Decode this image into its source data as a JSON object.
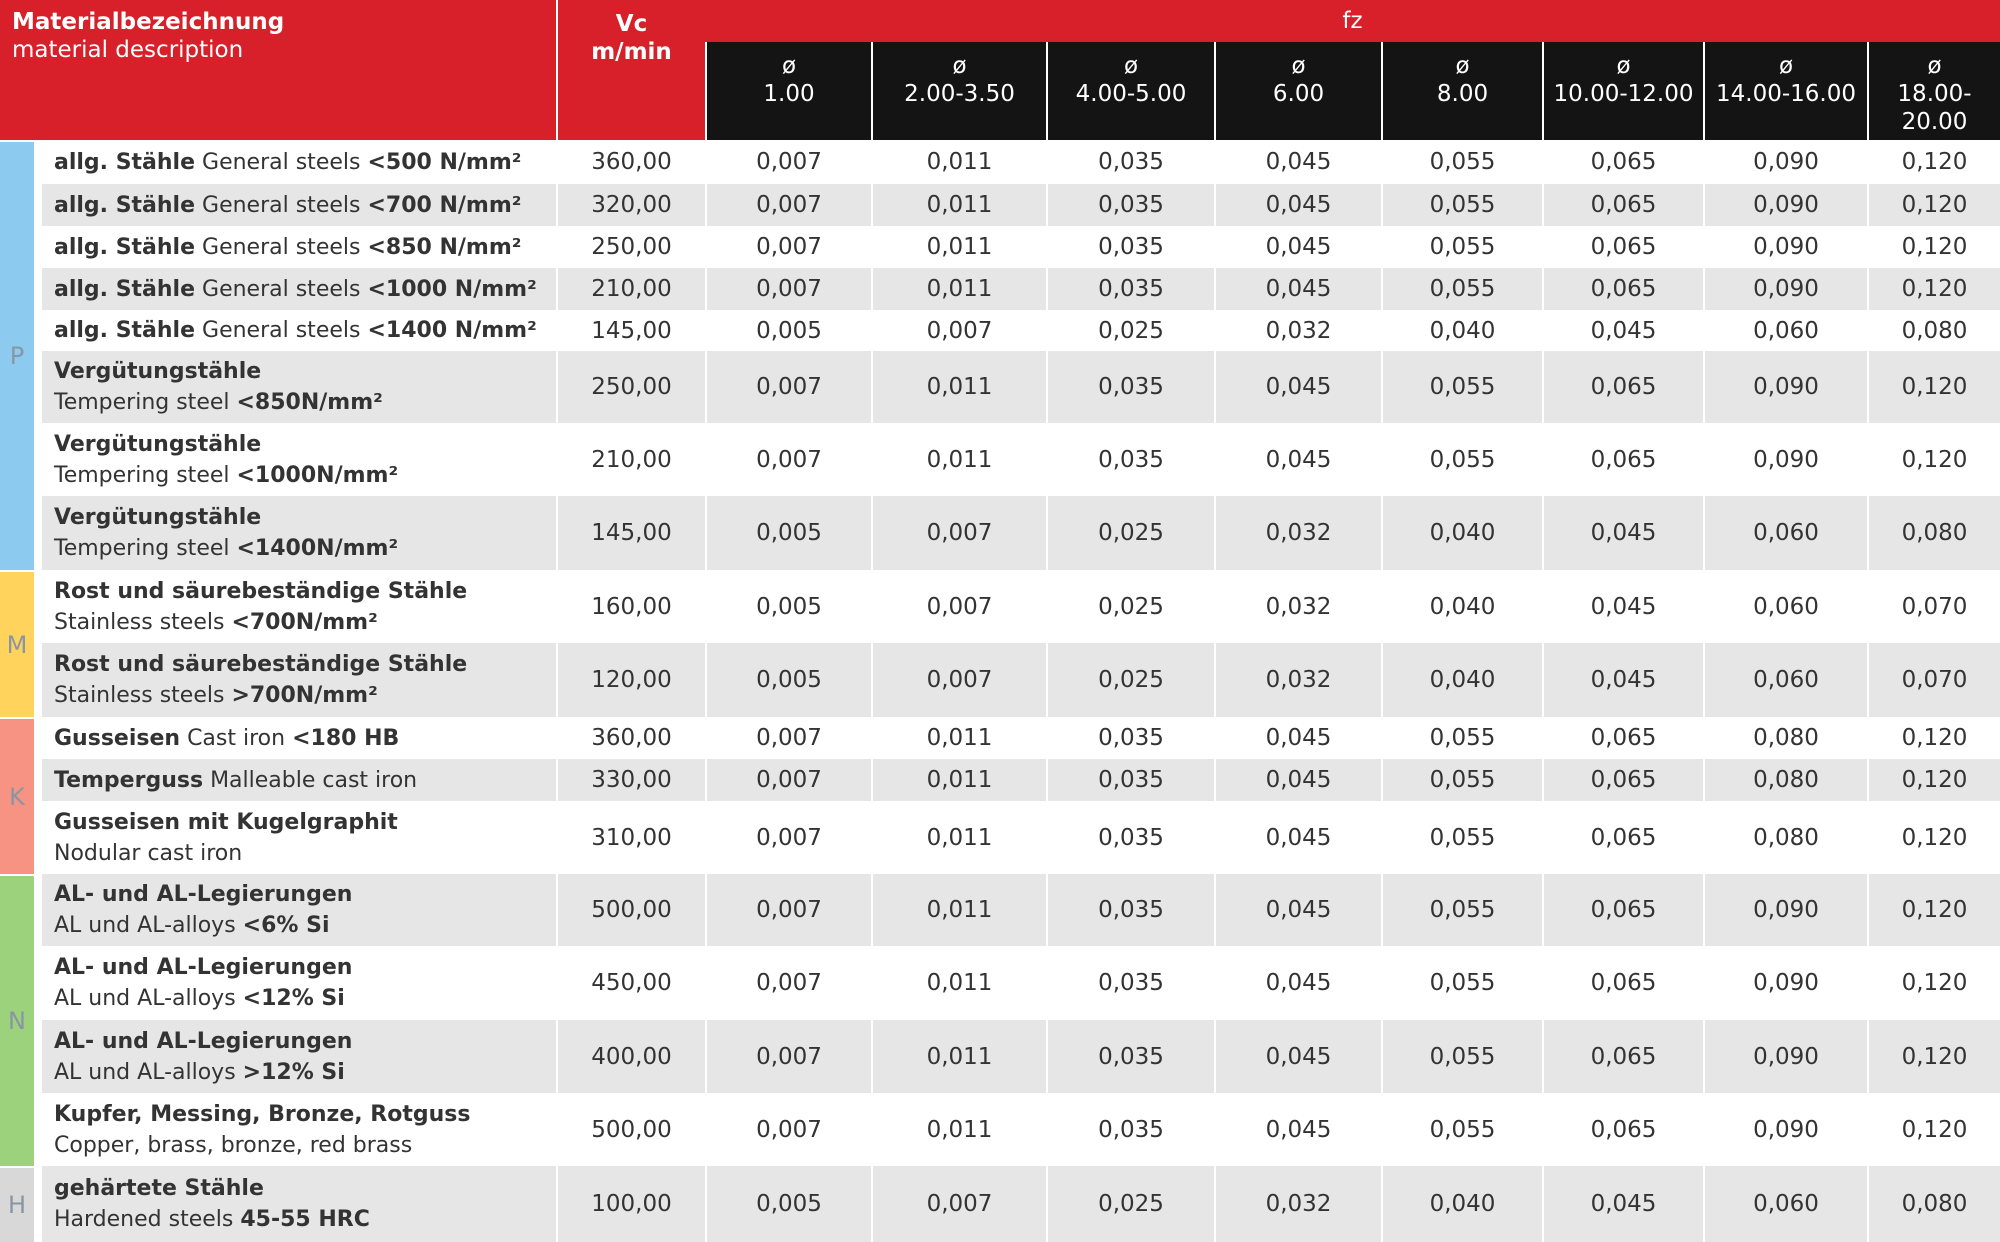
{
  "header": {
    "material_de": "Materialbezeichnung",
    "material_en": "material description",
    "vc": "Vc",
    "vc_unit": "m/min",
    "fz": "fz",
    "diameter_symbol": "ø",
    "diameters": [
      "1.00",
      "2.00-3.50",
      "4.00-5.00",
      "6.00",
      "8.00",
      "10.00-12.00",
      "14.00-16.00",
      "18.00-20.00"
    ]
  },
  "groups": [
    {
      "label": "P",
      "rows": [
        {
          "de": "allg. Stähle",
          "en": "General steels",
          "spec": "<500 N/mm²",
          "vc": "360,00",
          "fz": [
            "0,007",
            "0,011",
            "0,035",
            "0,045",
            "0,055",
            "0,065",
            "0,090",
            "0,120"
          ]
        },
        {
          "de": "allg. Stähle",
          "en": "General steels",
          "spec": "<700 N/mm²",
          "vc": "320,00",
          "fz": [
            "0,007",
            "0,011",
            "0,035",
            "0,045",
            "0,055",
            "0,065",
            "0,090",
            "0,120"
          ]
        },
        {
          "de": "allg. Stähle",
          "en": "General steels",
          "spec": "<850 N/mm²",
          "vc": "250,00",
          "fz": [
            "0,007",
            "0,011",
            "0,035",
            "0,045",
            "0,055",
            "0,065",
            "0,090",
            "0,120"
          ]
        },
        {
          "de": "allg. Stähle",
          "en": "General steels",
          "spec": "<1000 N/mm²",
          "vc": "210,00",
          "fz": [
            "0,007",
            "0,011",
            "0,035",
            "0,045",
            "0,055",
            "0,065",
            "0,090",
            "0,120"
          ]
        },
        {
          "de": "allg. Stähle",
          "en": "General steels",
          "spec": "<1400 N/mm²",
          "vc": "145,00",
          "fz": [
            "0,005",
            "0,007",
            "0,025",
            "0,032",
            "0,040",
            "0,045",
            "0,060",
            "0,080"
          ]
        },
        {
          "de": "Vergütungstähle",
          "en": "Tempering steel",
          "spec": "<850N/mm²",
          "vc": "250,00",
          "fz": [
            "0,007",
            "0,011",
            "0,035",
            "0,045",
            "0,055",
            "0,065",
            "0,090",
            "0,120"
          ]
        },
        {
          "de": "Vergütungstähle",
          "en": "Tempering steel",
          "spec": "<1000N/mm²",
          "vc": "210,00",
          "fz": [
            "0,007",
            "0,011",
            "0,035",
            "0,045",
            "0,055",
            "0,065",
            "0,090",
            "0,120"
          ]
        },
        {
          "de": "Vergütungstähle",
          "en": "Tempering steel",
          "spec": "<1400N/mm²",
          "vc": "145,00",
          "fz": [
            "0,005",
            "0,007",
            "0,025",
            "0,032",
            "0,040",
            "0,045",
            "0,060",
            "0,080"
          ]
        }
      ]
    },
    {
      "label": "M",
      "rows": [
        {
          "de": "Rost und säurebeständige Stähle",
          "en": "Stainless steels",
          "spec": "<700N/mm²",
          "vc": "160,00",
          "fz": [
            "0,005",
            "0,007",
            "0,025",
            "0,032",
            "0,040",
            "0,045",
            "0,060",
            "0,070"
          ]
        },
        {
          "de": "Rost und säurebeständige Stähle",
          "en": "Stainless steels",
          "spec": ">700N/mm²",
          "vc": "120,00",
          "fz": [
            "0,005",
            "0,007",
            "0,025",
            "0,032",
            "0,040",
            "0,045",
            "0,060",
            "0,070"
          ]
        }
      ]
    },
    {
      "label": "K",
      "rows": [
        {
          "de": "Gusseisen",
          "en": "Cast iron",
          "spec": "<180 HB",
          "vc": "360,00",
          "fz": [
            "0,007",
            "0,011",
            "0,035",
            "0,045",
            "0,055",
            "0,065",
            "0,080",
            "0,120"
          ]
        },
        {
          "de": "Temperguss",
          "en": "Malleable cast iron",
          "vc": "330,00",
          "fz": [
            "0,007",
            "0,011",
            "0,035",
            "0,045",
            "0,055",
            "0,065",
            "0,080",
            "0,120"
          ]
        },
        {
          "de": "Gusseisen mit Kugelgraphit",
          "en": "Nodular cast iron",
          "vc": "310,00",
          "fz": [
            "0,007",
            "0,011",
            "0,035",
            "0,045",
            "0,055",
            "0,065",
            "0,080",
            "0,120"
          ]
        }
      ]
    },
    {
      "label": "N",
      "rows": [
        {
          "de": "AL- und AL-Legierungen",
          "en": "AL und AL-alloys",
          "spec": "<6% Si",
          "vc": "500,00",
          "fz": [
            "0,007",
            "0,011",
            "0,035",
            "0,045",
            "0,055",
            "0,065",
            "0,090",
            "0,120"
          ]
        },
        {
          "de": "AL- und AL-Legierungen",
          "en": "AL und AL-alloys",
          "spec": "<12% Si",
          "vc": "450,00",
          "fz": [
            "0,007",
            "0,011",
            "0,035",
            "0,045",
            "0,055",
            "0,065",
            "0,090",
            "0,120"
          ]
        },
        {
          "de": "AL- und AL-Legierungen",
          "en": "AL und AL-alloys",
          "spec": ">12% Si",
          "vc": "400,00",
          "fz": [
            "0,007",
            "0,011",
            "0,035",
            "0,045",
            "0,055",
            "0,065",
            "0,090",
            "0,120"
          ]
        },
        {
          "de": "Kupfer, Messing, Bronze, Rotguss",
          "en": "Copper, brass, bronze, red brass",
          "vc": "500,00",
          "fz": [
            "0,007",
            "0,011",
            "0,035",
            "0,045",
            "0,055",
            "0,065",
            "0,090",
            "0,120"
          ]
        }
      ]
    },
    {
      "label": "H",
      "rows": [
        {
          "de": "gehärtete Stähle",
          "en": "Hardened steels",
          "spec": "45-55 HRC",
          "vc": "100,00",
          "fz": [
            "0,005",
            "0,007",
            "0,025",
            "0,032",
            "0,040",
            "0,045",
            "0,060",
            "0,080"
          ]
        }
      ]
    }
  ]
}
